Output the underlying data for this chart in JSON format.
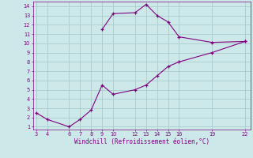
{
  "xlabel": "Windchill (Refroidissement éolien,°C)",
  "line1_x": [
    3,
    4,
    6,
    7,
    8,
    9,
    10,
    12,
    13,
    14,
    15,
    16,
    19,
    22
  ],
  "line1_y": [
    2.5,
    1.8,
    1.0,
    1.8,
    2.8,
    5.5,
    4.5,
    5.0,
    5.5,
    6.5,
    7.5,
    8.0,
    9.0,
    10.2
  ],
  "line2_x": [
    9,
    10,
    12,
    13,
    14,
    15,
    16,
    19,
    22
  ],
  "line2_y": [
    11.5,
    13.2,
    13.3,
    14.2,
    13.0,
    12.3,
    10.7,
    10.1,
    10.2
  ],
  "line_color": "#800080",
  "bg_color": "#cce8e8",
  "grid_color": "#aacccc",
  "xticks": [
    3,
    4,
    6,
    7,
    8,
    9,
    10,
    12,
    13,
    14,
    15,
    16,
    19,
    22
  ],
  "yticks": [
    1,
    2,
    3,
    4,
    5,
    6,
    7,
    8,
    9,
    10,
    11,
    12,
    13,
    14
  ],
  "xlim": [
    2.7,
    22.5
  ],
  "ylim": [
    0.7,
    14.5
  ]
}
